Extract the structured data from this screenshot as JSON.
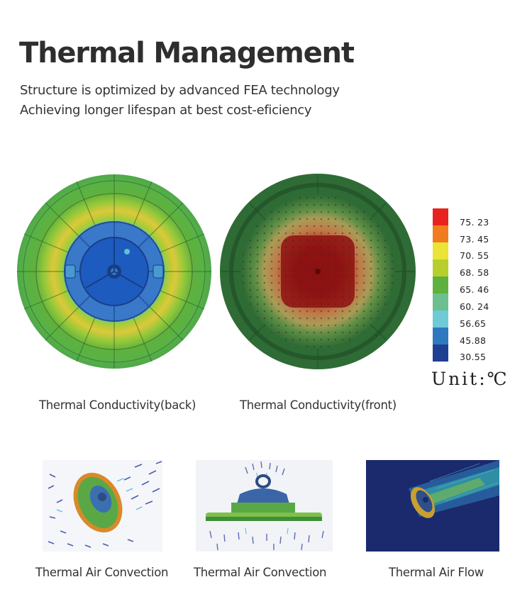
{
  "header": {
    "title": "Thermal Management",
    "subtitle_line1": "Structure is optimized by advanced FEA technology",
    "subtitle_line2": "Achieving longer lifespan at best cost-eficiency"
  },
  "simulations": {
    "back_caption": "Thermal Conductivity(back)",
    "front_caption": "Thermal Conductivity(front)"
  },
  "legend": {
    "values": [
      "75. 23",
      "73. 45",
      "70. 55",
      "68. 58",
      "65. 46",
      "60. 24",
      "56.65",
      "45.88",
      "30.55"
    ],
    "colors": [
      "#e8231f",
      "#f07c1f",
      "#ece434",
      "#b7cf2d",
      "#5fb13d",
      "#6cc08f",
      "#6ecbd6",
      "#2f78c0",
      "#1f3f93"
    ],
    "unit": "Unit:℃"
  },
  "thumbnails": {
    "captions": [
      "Thermal Air Convection",
      "Thermal Air Convection",
      "Thermal Air Flow"
    ]
  }
}
